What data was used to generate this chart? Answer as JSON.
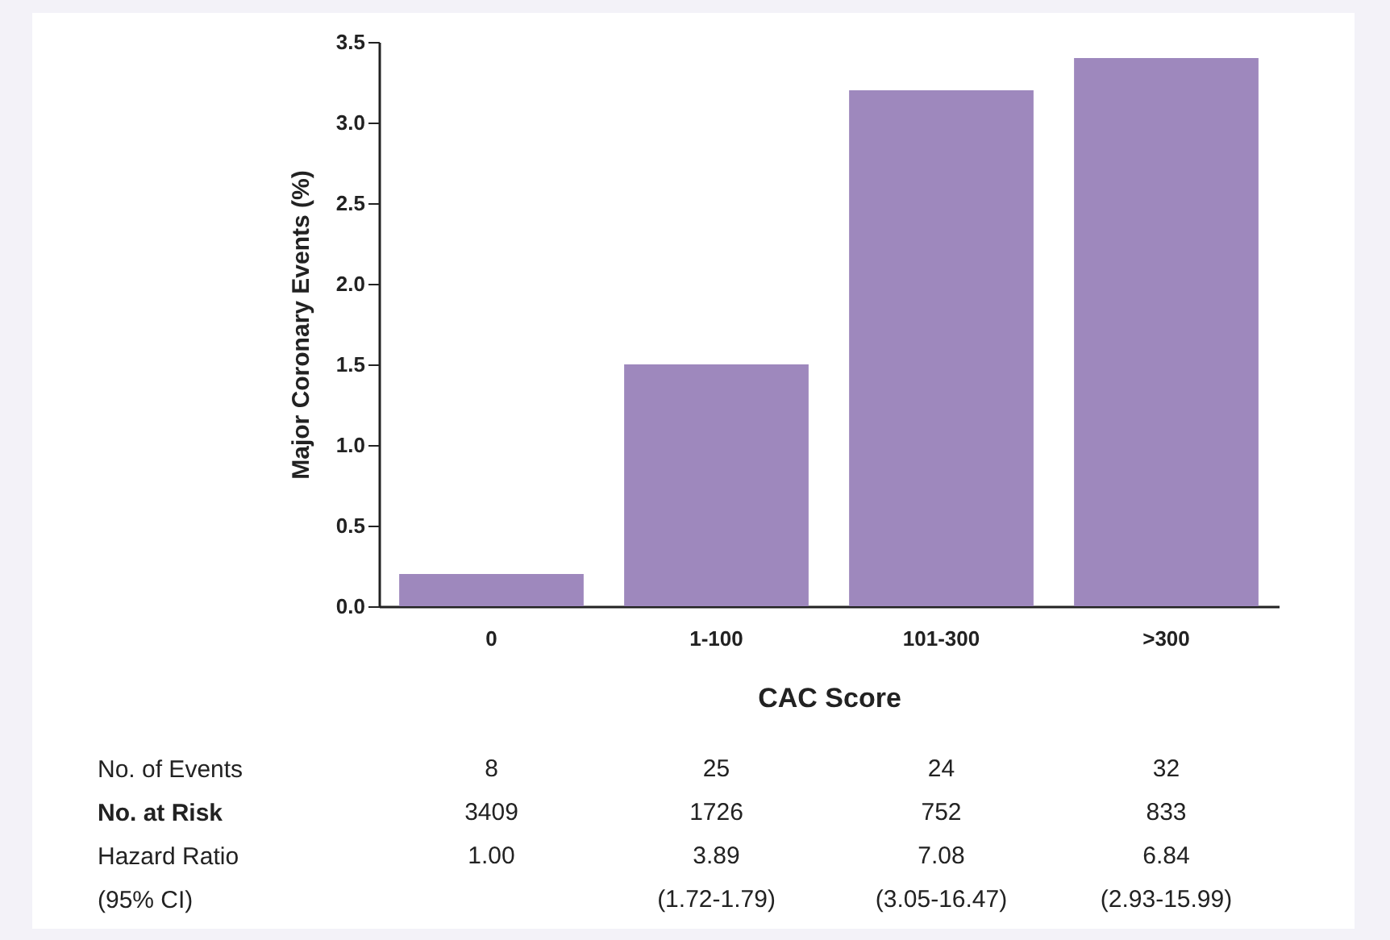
{
  "chart_data": {
    "type": "bar",
    "xlabel": "CAC Score",
    "ylabel": "Major Coronary Events (%)",
    "categories": [
      "0",
      "1-100",
      "101-300",
      ">300"
    ],
    "values": [
      0.2,
      1.5,
      3.2,
      3.4
    ],
    "color": "#9e88bd",
    "ylim": [
      0,
      3.5
    ],
    "yticks": [
      {
        "value": 0,
        "label": "0.0"
      },
      {
        "value": 0.5,
        "label": "0.5"
      },
      {
        "value": 1,
        "label": "1.0"
      },
      {
        "value": 1.5,
        "label": "1.5"
      },
      {
        "value": 2,
        "label": "2.0"
      },
      {
        "value": 2.5,
        "label": "2.5"
      },
      {
        "value": 3,
        "label": "3.0"
      },
      {
        "value": 3.5,
        "label": "3.5"
      }
    ],
    "annotations": [
      "No. of Events",
      "8",
      "25",
      "24",
      "32",
      "No. at Risk",
      "3409",
      "1726",
      "752",
      "833",
      "Hazard Ratio",
      "1.00",
      "3.89",
      "7.08",
      "6.84",
      "(95% CI)",
      "(1.72-1.79)",
      "(3.05-16.47)",
      "(2.93-15.99)"
    ]
  }
}
